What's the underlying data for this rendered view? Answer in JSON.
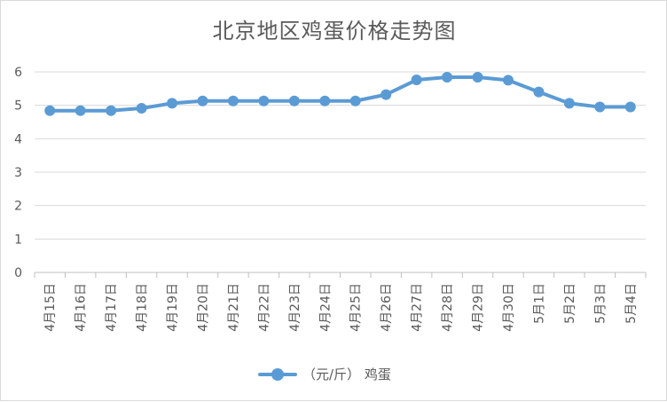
{
  "chart_data": {
    "type": "line",
    "title": "北京地区鸡蛋价格走势图",
    "categories": [
      "4月15日",
      "4月16日",
      "4月17日",
      "4月18日",
      "4月19日",
      "4月20日",
      "4月21日",
      "4月22日",
      "4月23日",
      "4月24日",
      "4月25日",
      "4月26日",
      "4月27日",
      "4月28日",
      "4月29日",
      "4月30日",
      "5月1日",
      "5月2日",
      "5月3日",
      "5月4日"
    ],
    "series": [
      {
        "name": "（元/斤） 鸡蛋",
        "values": [
          4.84,
          4.84,
          4.84,
          4.91,
          5.06,
          5.13,
          5.13,
          5.13,
          5.13,
          5.13,
          5.13,
          5.32,
          5.76,
          5.84,
          5.84,
          5.75,
          5.4,
          5.06,
          4.95,
          4.95
        ]
      }
    ],
    "ylim": [
      0,
      6
    ],
    "yticks": [
      "0",
      "1",
      "2",
      "3",
      "4",
      "5",
      "6"
    ],
    "xlabel": "",
    "ylabel": "",
    "grid": true,
    "legend": "bottom",
    "line_color": "#5b9bd5"
  }
}
